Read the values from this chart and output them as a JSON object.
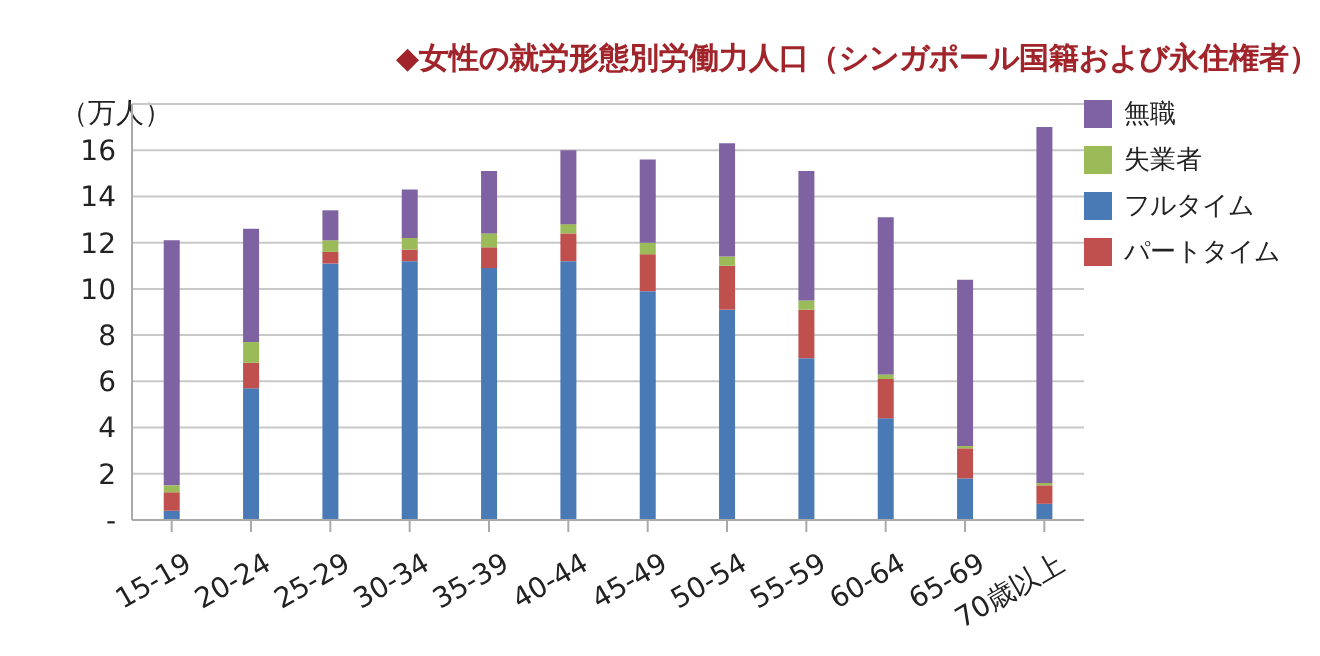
{
  "chart_data": {
    "type": "bar",
    "title": "◆女性の就労形態別労働力人口（シンガポール国籍および永住権者）",
    "ylabel": "（万人）",
    "stacked": true,
    "categories": [
      "15-19",
      "20-24",
      "25-29",
      "30-34",
      "35-39",
      "40-44",
      "45-49",
      "50-54",
      "55-59",
      "60-64",
      "65-69",
      "70歳以上"
    ],
    "series": [
      {
        "name": "フルタイム",
        "color": "#4a7ab5",
        "values": [
          0.4,
          5.7,
          11.1,
          11.2,
          10.9,
          11.2,
          9.9,
          9.1,
          7.0,
          4.4,
          1.8,
          0.7
        ]
      },
      {
        "name": "パートタイム",
        "color": "#c0504d",
        "values": [
          0.8,
          1.1,
          0.5,
          0.5,
          0.9,
          1.2,
          1.6,
          1.9,
          2.1,
          1.7,
          1.3,
          0.8
        ]
      },
      {
        "name": "失業者",
        "color": "#9bbb59",
        "values": [
          0.3,
          0.9,
          0.5,
          0.5,
          0.6,
          0.4,
          0.5,
          0.4,
          0.4,
          0.2,
          0.1,
          0.1
        ]
      },
      {
        "name": "無職",
        "color": "#7f62a1",
        "values": [
          10.6,
          4.9,
          1.3,
          2.1,
          2.7,
          3.2,
          3.6,
          4.9,
          5.6,
          6.8,
          7.2,
          15.4
        ]
      }
    ],
    "ylim": [
      0,
      18
    ],
    "yticks": [
      {
        "value": 0,
        "label": "-"
      },
      2,
      4,
      6,
      8,
      10,
      12,
      14,
      16,
      {
        "value": 18,
        "label": null
      }
    ],
    "grid": "y",
    "legend": "top right"
  }
}
